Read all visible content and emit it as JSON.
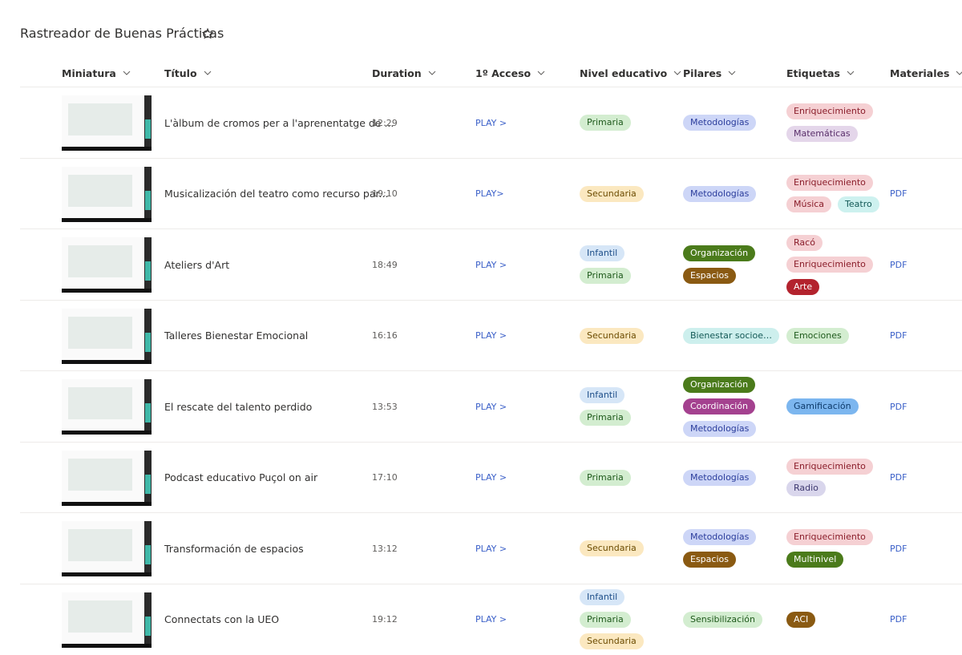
{
  "header": {
    "title": "Rastreador de Buenas Prácticas"
  },
  "table": {
    "columns": [
      "Miniatura",
      "Título",
      "Duration",
      "1º Acceso",
      "Nivel educativo",
      "Pilares",
      "Etiquetas",
      "Materiales"
    ],
    "rows": [
      {
        "title": "L'àlbum de cromos per a l'aprenentatge de ...",
        "duration": "12:29",
        "access": "PLAY >",
        "levels": [
          {
            "text": "Primaria",
            "bg": "#d3edd0",
            "fg": "#1f5a1c"
          }
        ],
        "pillars": [
          {
            "text": "Metodologías",
            "bg": "#cdd6f7",
            "fg": "#2b3d9c"
          }
        ],
        "tags": [
          {
            "text": "Enriquecimiento",
            "bg": "#f5d0d3",
            "fg": "#8a1d2a"
          },
          {
            "text": "Matemáticas",
            "bg": "#e4d6ea",
            "fg": "#5a2f6b"
          }
        ]
      },
      {
        "title": "Musicalización del teatro como recurso par...",
        "duration": "19:10",
        "access": "PLAY>",
        "levels": [
          {
            "text": "Secundaria",
            "bg": "#fbe8c0",
            "fg": "#6b4b00"
          }
        ],
        "pillars": [
          {
            "text": "Metodologías",
            "bg": "#cdd6f7",
            "fg": "#2b3d9c"
          }
        ],
        "tags": [
          {
            "text": "Enriquecimiento",
            "bg": "#f5d0d3",
            "fg": "#8a1d2a"
          },
          {
            "text": "Música",
            "bg": "#f5d0d3",
            "fg": "#8a1d2a"
          },
          {
            "text": "Teatro",
            "bg": "#cdf1ef",
            "fg": "#145a57"
          }
        ],
        "materials": "PDF"
      },
      {
        "title": "Ateliers d'Art",
        "duration": "18:49",
        "access": "PLAY >",
        "levels": [
          {
            "text": "Infantil",
            "bg": "#d6e6f7",
            "fg": "#1d4e89"
          },
          {
            "text": "Primaria",
            "bg": "#d3edd0",
            "fg": "#1f5a1c"
          }
        ],
        "pillars": [
          {
            "text": "Organización",
            "bg": "#4b7b1b",
            "fg": "#ffffff"
          },
          {
            "text": "Espacios",
            "bg": "#8a5a12",
            "fg": "#ffffff"
          }
        ],
        "tags": [
          {
            "text": "Racó",
            "bg": "#f5d0d3",
            "fg": "#8a1d2a"
          },
          {
            "text": "Enriquecimiento",
            "bg": "#f5d0d3",
            "fg": "#8a1d2a"
          },
          {
            "text": "Arte",
            "bg": "#b3232e",
            "fg": "#ffffff"
          }
        ],
        "materials": "PDF"
      },
      {
        "title": "Talleres Bienestar Emocional",
        "duration": "16:16",
        "access": "PLAY >",
        "levels": [
          {
            "text": "Secundaria",
            "bg": "#fbe8c0",
            "fg": "#6b4b00"
          }
        ],
        "pillars": [
          {
            "text": "Bienestar socioe…",
            "bg": "#cdefed",
            "fg": "#145a57"
          }
        ],
        "tags": [
          {
            "text": "Emociones",
            "bg": "#d3edd0",
            "fg": "#1f5a1c"
          }
        ],
        "materials": "PDF"
      },
      {
        "title": "El rescate del talento perdido",
        "duration": "13:53",
        "access": "PLAY >",
        "levels": [
          {
            "text": "Infantil",
            "bg": "#d6e6f7",
            "fg": "#1d4e89"
          },
          {
            "text": "Primaria",
            "bg": "#d3edd0",
            "fg": "#1f5a1c"
          }
        ],
        "pillars": [
          {
            "text": "Organización",
            "bg": "#4b7b1b",
            "fg": "#ffffff"
          },
          {
            "text": "Coordinación",
            "bg": "#a4418f",
            "fg": "#ffffff"
          },
          {
            "text": "Metodologías",
            "bg": "#cdd6f7",
            "fg": "#2b3d9c"
          }
        ],
        "tags": [
          {
            "text": "Gamificación",
            "bg": "#7cb6ef",
            "fg": "#0d3a6a"
          }
        ],
        "materials": "PDF"
      },
      {
        "title": "Podcast educativo Puçol on air",
        "duration": "17:10",
        "access": "PLAY >",
        "levels": [
          {
            "text": "Primaria",
            "bg": "#d3edd0",
            "fg": "#1f5a1c"
          }
        ],
        "pillars": [
          {
            "text": "Metodologías",
            "bg": "#cdd6f7",
            "fg": "#2b3d9c"
          }
        ],
        "tags": [
          {
            "text": "Enriquecimiento",
            "bg": "#f5d0d3",
            "fg": "#8a1d2a"
          },
          {
            "text": "Radio",
            "bg": "#d9d6ec",
            "fg": "#3e3870"
          }
        ],
        "materials": "PDF"
      },
      {
        "title": "Transformación de espacios",
        "duration": "13:12",
        "access": "PLAY >",
        "levels": [
          {
            "text": "Secundaria",
            "bg": "#fbe8c0",
            "fg": "#6b4b00"
          }
        ],
        "pillars": [
          {
            "text": "Metodologías",
            "bg": "#cdd6f7",
            "fg": "#2b3d9c"
          },
          {
            "text": "Espacios",
            "bg": "#8a5a12",
            "fg": "#ffffff"
          }
        ],
        "tags": [
          {
            "text": "Enriquecimiento",
            "bg": "#f5d0d3",
            "fg": "#8a1d2a"
          },
          {
            "text": "Multinivel",
            "bg": "#4b7b1b",
            "fg": "#ffffff"
          }
        ],
        "materials": "PDF"
      },
      {
        "title": "Connectats con la UEO",
        "duration": "19:12",
        "access": "PLAY >",
        "levels": [
          {
            "text": "Infantil",
            "bg": "#d6e6f7",
            "fg": "#1d4e89"
          },
          {
            "text": "Primaria",
            "bg": "#d3edd0",
            "fg": "#1f5a1c"
          },
          {
            "text": "Secundaria",
            "bg": "#fbe8c0",
            "fg": "#6b4b00"
          }
        ],
        "pillars": [
          {
            "text": "Sensibilización",
            "bg": "#d3edd0",
            "fg": "#1f5a1c"
          }
        ],
        "tags": [
          {
            "text": "ACI",
            "bg": "#8a5a12",
            "fg": "#ffffff"
          }
        ],
        "materials": "PDF"
      }
    ]
  }
}
